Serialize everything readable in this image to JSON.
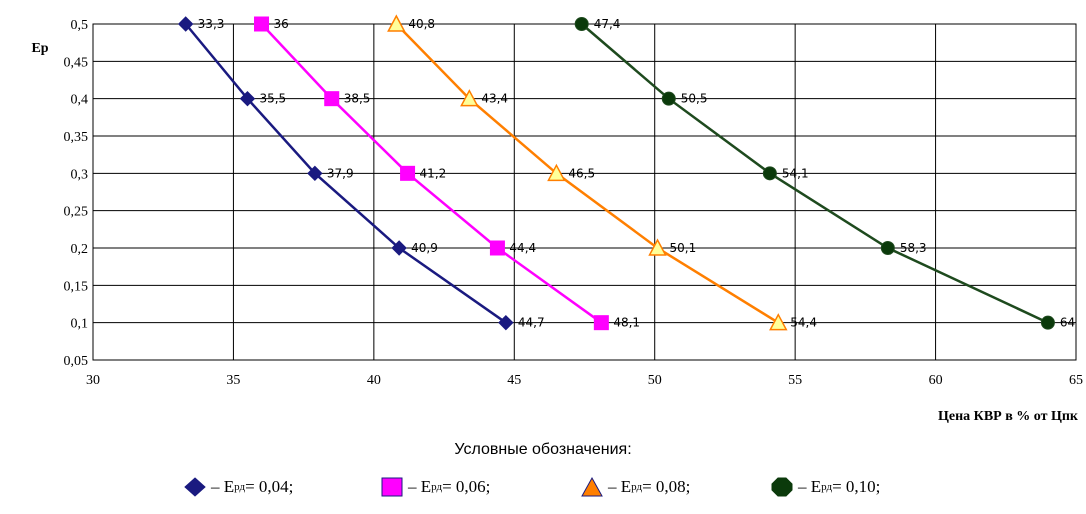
{
  "chart_data": {
    "type": "line",
    "ylabel": "Ер",
    "xlabel": "Цена КВР в % от Цпк",
    "xlim": [
      30,
      65
    ],
    "ylim": [
      0.05,
      0.5
    ],
    "x_ticks": [
      "30",
      "35",
      "40",
      "45",
      "50",
      "55",
      "60",
      "65"
    ],
    "y_ticks": [
      "0,05",
      "0,1",
      "0,15",
      "0,2",
      "0,25",
      "0,3",
      "0,35",
      "0,4",
      "0,45",
      "0,5"
    ],
    "grid": "horizontal-and-vertical",
    "series": [
      {
        "marker": "diamond",
        "color": "#1a1a80",
        "marker_fill": "#1a1a80",
        "points": [
          {
            "x": 33.3,
            "y": 0.5,
            "label": "33,3"
          },
          {
            "x": 35.5,
            "y": 0.4,
            "label": "35,5"
          },
          {
            "x": 37.9,
            "y": 0.3,
            "label": "37,9"
          },
          {
            "x": 40.9,
            "y": 0.2,
            "label": "40,9"
          },
          {
            "x": 44.7,
            "y": 0.1,
            "label": "44,7"
          }
        ]
      },
      {
        "marker": "square",
        "color": "#ff00ff",
        "marker_fill": "#ff00ff",
        "points": [
          {
            "x": 36,
            "y": 0.5,
            "label": "36"
          },
          {
            "x": 38.5,
            "y": 0.4,
            "label": "38,5"
          },
          {
            "x": 41.2,
            "y": 0.3,
            "label": "41,2"
          },
          {
            "x": 44.4,
            "y": 0.2,
            "label": "44,4"
          },
          {
            "x": 48.1,
            "y": 0.1,
            "label": "48,1"
          }
        ]
      },
      {
        "marker": "triangle",
        "color": "#ff7f00",
        "marker_fill": "#ffff99",
        "points": [
          {
            "x": 40.8,
            "y": 0.5,
            "label": "40,8"
          },
          {
            "x": 43.4,
            "y": 0.4,
            "label": "43,4"
          },
          {
            "x": 46.5,
            "y": 0.3,
            "label": "46,5"
          },
          {
            "x": 50.1,
            "y": 0.2,
            "label": "50,1"
          },
          {
            "x": 54.4,
            "y": 0.1,
            "label": "54,4"
          }
        ]
      },
      {
        "marker": "circle",
        "color": "#1e4a1e",
        "marker_fill": "#0b3a0b",
        "points": [
          {
            "x": 47.4,
            "y": 0.5,
            "label": "47,4"
          },
          {
            "x": 50.5,
            "y": 0.4,
            "label": "50,5"
          },
          {
            "x": 54.1,
            "y": 0.3,
            "label": "54,1"
          },
          {
            "x": 58.3,
            "y": 0.2,
            "label": "58,3"
          },
          {
            "x": 64,
            "y": 0.1,
            "label": "64"
          }
        ]
      }
    ]
  },
  "legend": {
    "title": "Условные обозначения:",
    "items": [
      {
        "prefix": "– E",
        "sub": "рд",
        "suffix": " = 0,04;",
        "icon": "diamond-icon",
        "fill": "#1a1a80",
        "stroke": "#1a1a80"
      },
      {
        "prefix": "– E",
        "sub": "рд",
        "suffix": " = 0,06;",
        "icon": "square-icon",
        "fill": "#ff00ff",
        "stroke": "#1a1a80"
      },
      {
        "prefix": "– E",
        "sub": "рд",
        "suffix": " = 0,08;",
        "icon": "triangle-icon",
        "fill": "#ff7f00",
        "stroke": "#1a1a80"
      },
      {
        "prefix": "– E",
        "sub": "рд",
        "suffix": " = 0,10;",
        "icon": "octagon-icon",
        "fill": "#0b3a0b",
        "stroke": "#0b3a0b"
      }
    ]
  }
}
